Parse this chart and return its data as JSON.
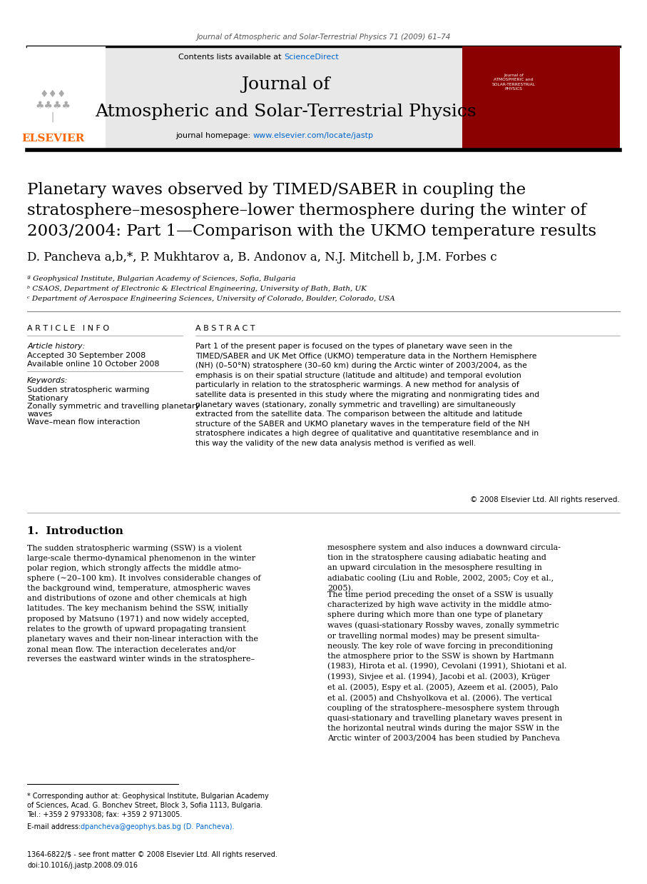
{
  "page_width": 9.07,
  "page_height": 12.38,
  "bg_color": "#ffffff",
  "journal_header_text": "Journal of Atmospheric and Solar-Terrestrial Physics 71 (2009) 61–74",
  "journal_name_line1": "Journal of",
  "journal_name_line2": "Atmospheric and Solar-Terrestrial Physics",
  "journal_homepage_prefix": "journal homepage: ",
  "journal_homepage_url": "www.elsevier.com/locate/jastp",
  "sciencedirect_prefix": "Contents lists available at ",
  "sciencedirect_text": "ScienceDirect",
  "elsevier_text": "ELSEVIER",
  "elsevier_color": "#ff6600",
  "header_bg_color": "#e8e8e8",
  "article_title": "Planetary waves observed by TIMED/SABER in coupling the\nstratosphere–mesosphere–lower thermosphere during the winter of\n2003/2004: Part 1—Comparison with the UKMO temperature results",
  "authors": "D. Pancheva a,b,*, P. Mukhtarov a, B. Andonov a, N.J. Mitchell b, J.M. Forbes c",
  "affil_a": "ª Geophysical Institute, Bulgarian Academy of Sciences, Sofia, Bulgaria",
  "affil_b": "ᵇ CSAOS, Department of Electronic & Electrical Engineering, University of Bath, Bath, UK",
  "affil_c": "ᶜ Department of Aerospace Engineering Sciences, University of Colorado, Boulder, Colorado, USA",
  "article_info_header": "A R T I C L E   I N F O",
  "article_history_label": "Article history:",
  "accepted_text": "Accepted 30 September 2008",
  "available_text": "Available online 10 October 2008",
  "keywords_label": "Keywords:",
  "keyword1": "Sudden stratospheric warming",
  "keyword2": "Stationary",
  "keyword3": "Zonally symmetric and travelling planetary",
  "keyword3b": "waves",
  "keyword4": "Wave–mean flow interaction",
  "abstract_header": "A B S T R A C T",
  "abstract_text": "Part 1 of the present paper is focused on the types of planetary wave seen in the\nTIMED/SABER and UK Met Office (UKMO) temperature data in the Northern Hemisphere\n(NH) (0–50°N) stratosphere (30–60 km) during the Arctic winter of 2003/2004, as the\nemphasis is on their spatial structure (latitude and altitude) and temporal evolution\nparticularly in relation to the stratospheric warmings. A new method for analysis of\nsatellite data is presented in this study where the migrating and nonmigrating tides and\nplanetary waves (stationary, zonally symmetric and travelling) are simultaneously\nextracted from the satellite data. The comparison between the altitude and latitude\nstructure of the SABER and UKMO planetary waves in the temperature field of the NH\nstratosphere indicates a high degree of qualitative and quantitative resemblance and in\nthis way the validity of the new data analysis method is verified as well.",
  "copyright_text": "© 2008 Elsevier Ltd. All rights reserved.",
  "intro_header": "1.  Introduction",
  "intro_text1": "The sudden stratospheric warming (SSW) is a violent\nlarge-scale thermo-dynamical phenomenon in the winter\npolar region, which strongly affects the middle atmo-\nsphere (∼20–100 km). It involves considerable changes of\nthe background wind, temperature, atmospheric waves\nand distributions of ozone and other chemicals at high\nlatitudes. The key mechanism behind the SSW, initially\nproposed by Matsuno (1971) and now widely accepted,\nrelates to the growth of upward propagating transient\nplanetary waves and their non-linear interaction with the\nzonal mean flow. The interaction decelerates and/or\nreverses the eastward winter winds in the stratosphere–",
  "intro_text2": "mesosphere system and also induces a downward circula-\ntion in the stratosphere causing adiabatic heating and\nan upward circulation in the mesosphere resulting in\nadiabatic cooling (Liu and Roble, 2002, 2005; Coy et al.,\n2005).",
  "intro_text2b": "The time period preceding the onset of a SSW is usually\ncharacterized by high wave activity in the middle atmo-\nsphere during which more than one type of planetary\nwaves (quasi-stationary Rossby waves, zonally symmetric\nor travelling normal modes) may be present simulta-\nneously. The key role of wave forcing in preconditioning\nthe atmosphere prior to the SSW is shown by Hartmann\n(1983), Hirota et al. (1990), Cevolani (1991), Shiotani et al.\n(1993), Sivjee et al. (1994), Jacobi et al. (2003), Krüger\net al. (2005), Espy et al. (2005), Azeem et al. (2005), Palo\net al. (2005) and Chshyolkova et al. (2006). The vertical\ncoupling of the stratosphere–mesosphere system through\nquasi-stationary and travelling planetary waves present in\nthe horizontal neutral winds during the major SSW in the\nArctic winter of 2003/2004 has been studied by Pancheva",
  "footnote_star": "* Corresponding author at: Geophysical Institute, Bulgarian Academy\nof Sciences, Acad. G. Bonchev Street, Block 3, Sofia 1113, Bulgaria.\nTel.: +359 2 9793308; fax: +359 2 9713005.",
  "footnote_email_label": "E-mail address: ",
  "footnote_email": "dpancheva@geophys.bas.bg (D. Pancheva).",
  "footer_issn": "1364-6822/$ - see front matter © 2008 Elsevier Ltd. All rights reserved.",
  "footer_doi": "doi:10.1016/j.jastp.2008.09.016",
  "link_color": "#0066cc",
  "red_link_color": "#cc0000",
  "text_color": "#000000",
  "gray_text": "#555555"
}
